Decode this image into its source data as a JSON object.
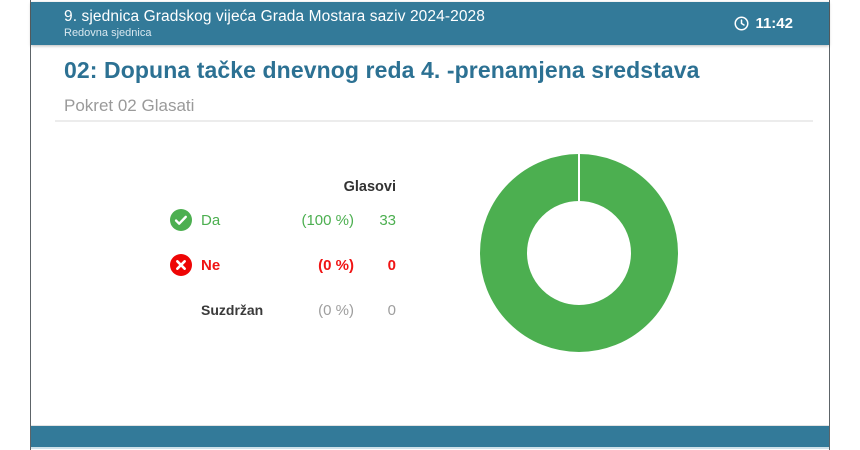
{
  "window": {
    "header": {
      "title": "9. sjednica Gradskog vijeća Grada Mostara saziv 2024-2028",
      "subtitle": "Redovna sjednica",
      "clock_icon": "clock-icon",
      "time": "11:42"
    },
    "content": {
      "heading": "02: Dopuna tačke dnevnog reda 4. -prenamjena sredstava",
      "subheading": "Pokret 02 Glasati"
    },
    "votes": {
      "column_header": "Glasovi",
      "rows": [
        {
          "icon": "check-circle-icon",
          "label": "Da",
          "percent": "(100 %)",
          "count": "33",
          "color": "#4caf50"
        },
        {
          "icon": "x-circle-icon",
          "label": "Ne",
          "percent": "(0 %)",
          "count": "0",
          "color": "#f01414"
        },
        {
          "icon": "gray-circle-icon",
          "label": "Suzdržan",
          "percent": "(0 %)",
          "count": "0",
          "color": "#9e9e9e"
        }
      ]
    }
  },
  "chart_data": {
    "type": "pie",
    "subtype": "donut",
    "title": "Glasovi",
    "categories": [
      "Da",
      "Ne",
      "Suzdržan"
    ],
    "values": [
      33,
      0,
      0
    ],
    "percent_labels": [
      "(100 %)",
      "(0 %)",
      "(0 %)"
    ],
    "colors": [
      "#4caf50",
      "#f01414",
      "#9e9e9e"
    ],
    "inner_radius_ratio": 0.53,
    "legend_position": "left"
  },
  "colors": {
    "header_bar": "#337a99",
    "heading_text": "#2c7193",
    "yes_green": "#4caf50",
    "no_red": "#f01414",
    "abstain_gray": "#9e9e9e",
    "divider": "#ececec"
  }
}
